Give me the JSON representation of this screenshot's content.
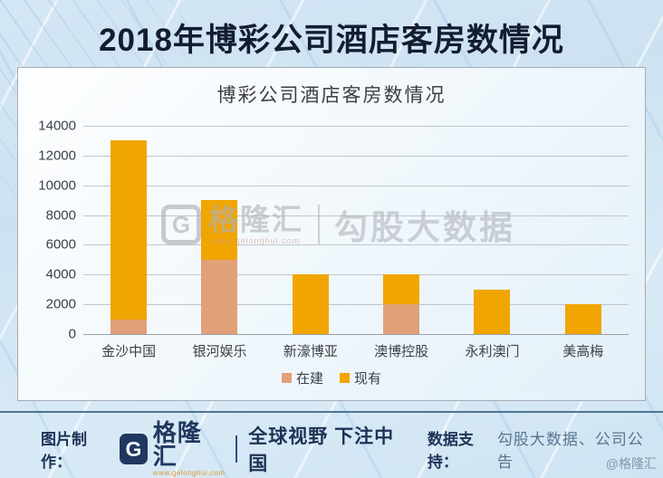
{
  "header": {
    "title": "2018年博彩公司酒店客房数情况"
  },
  "chart_data": {
    "type": "bar",
    "stacked": true,
    "title": "博彩公司酒店客房数情况",
    "categories": [
      "金沙中国",
      "银河娱乐",
      "新濠博亚",
      "澳博控股",
      "永利澳门",
      "美高梅"
    ],
    "series": [
      {
        "name": "在建",
        "color": "#e0a178",
        "values": [
          1000,
          5000,
          0,
          2000,
          0,
          0
        ]
      },
      {
        "name": "现有",
        "color": "#f0a500",
        "values": [
          12000,
          4000,
          4000,
          2000,
          3000,
          2000
        ]
      }
    ],
    "xlabel": "",
    "ylabel": "",
    "ylim": [
      0,
      14000
    ],
    "ytick_step": 2000,
    "grid": true,
    "legend_position": "bottom"
  },
  "watermark": {
    "logo_letter": "G",
    "brand": "格隆汇",
    "url": "www.gelonghui.com",
    "product": "勾股大数据"
  },
  "footer": {
    "made_by_label": "图片制作：",
    "logo_letter": "G",
    "brand": "格隆汇",
    "brand_url": "www.gelonghui.com",
    "slogan": "全球视野 下注中国",
    "data_support_label": "数据支持：",
    "data_support_value": "勾股大数据、公司公告"
  },
  "corner_handle": "@格隆汇",
  "colors": {
    "title_text": "#131d31",
    "bar_existing": "#f0a500",
    "bar_under_construction": "#e0a178",
    "footer_navy": "#1d3356",
    "background": "#cfe3f2"
  }
}
